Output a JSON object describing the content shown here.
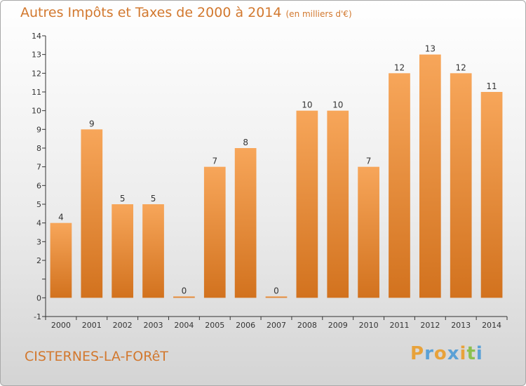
{
  "header": {
    "title": "Autres Impôts et Taxes de 2000 à 2014",
    "unit": "(en milliers d'€)"
  },
  "footer": {
    "commune": "CISTERNES-LA-FORêT"
  },
  "logo": {
    "letters": [
      "P",
      "r",
      "o",
      "x",
      "i",
      "t",
      "i"
    ],
    "colors": [
      "#e8a23a",
      "#5aa1d6",
      "#e8a23a",
      "#5aa1d6",
      "#e8a23a",
      "#8cc04e",
      "#5aa1d6"
    ]
  },
  "colors": {
    "bar_light": "#f7a65a",
    "bar_dark": "#d2721e",
    "title": "#d2782e",
    "axis": "#333333"
  },
  "chart_data": {
    "type": "bar",
    "title": "Autres Impôts et Taxes de 2000 à 2014",
    "categories": [
      "2000",
      "2001",
      "2002",
      "2003",
      "2004",
      "2005",
      "2006",
      "2007",
      "2008",
      "2009",
      "2010",
      "2011",
      "2012",
      "2013",
      "2014"
    ],
    "values": [
      4,
      9,
      5,
      5,
      0,
      7,
      8,
      0,
      10,
      10,
      7,
      12,
      13,
      12,
      11
    ],
    "yticks": [
      -1,
      0,
      1,
      2,
      3,
      4,
      5,
      6,
      7,
      8,
      9,
      10,
      11,
      12,
      13,
      14
    ],
    "ytick_labels": [
      "-1",
      "0",
      "",
      "2",
      "3",
      "4",
      "5",
      "6",
      "7",
      "8",
      "9",
      "10",
      "11",
      "12",
      "13",
      "14"
    ],
    "ylim": [
      -1,
      14
    ],
    "grid": false,
    "xlabel": "",
    "ylabel": ""
  }
}
